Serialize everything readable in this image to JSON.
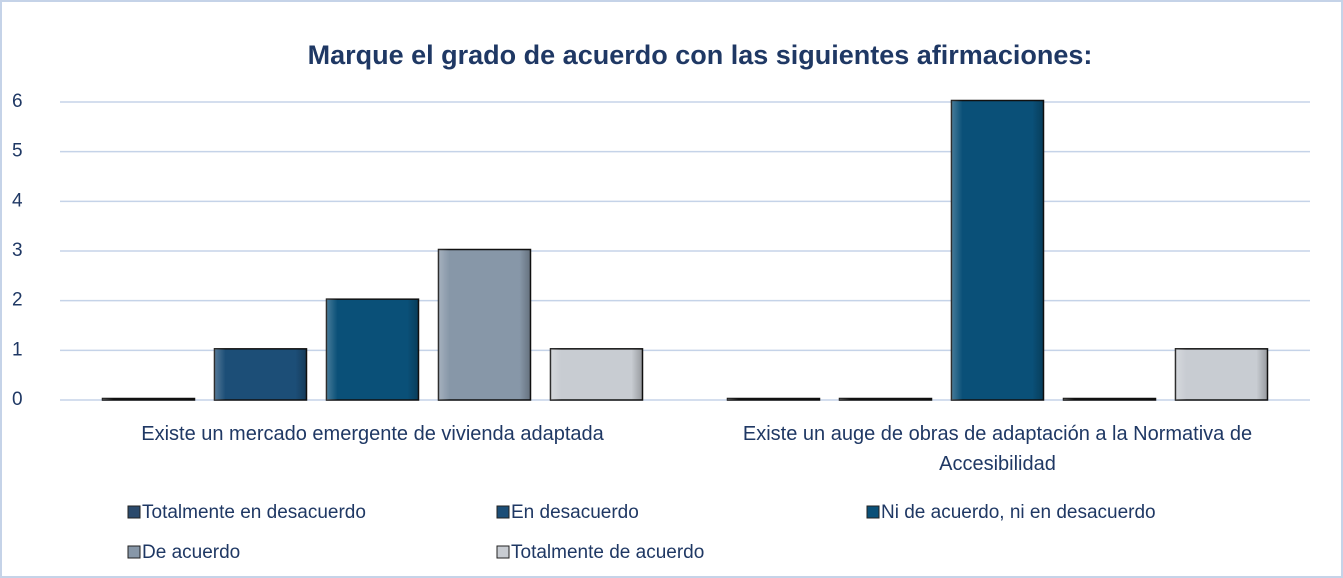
{
  "chart_data": {
    "type": "bar",
    "title": "Marque el grado de acuerdo con las siguientes afirmaciones:",
    "categories": [
      "Existe un mercado emergente de vivienda adaptada",
      "Existe un auge de obras de adaptación a la Normativa de Accesibilidad"
    ],
    "series": [
      {
        "name": "Totalmente en desacuerdo",
        "color": "#2b4a6c",
        "values": [
          0,
          0
        ]
      },
      {
        "name": "En desacuerdo",
        "color": "#1c4e77",
        "values": [
          1,
          0
        ]
      },
      {
        "name": "Ni de acuerdo, ni en desacuerdo",
        "color": "#0a5078",
        "values": [
          2,
          6
        ]
      },
      {
        "name": "De acuerdo",
        "color": "#8797a8",
        "values": [
          3,
          0
        ]
      },
      {
        "name": "Totalmente de acuerdo",
        "color": "#c8ccd2",
        "values": [
          1,
          1
        ]
      }
    ],
    "ylim": [
      0,
      6
    ],
    "yticks": [
      0,
      1,
      2,
      3,
      4,
      5,
      6
    ],
    "grid": true,
    "legend": "bottom"
  }
}
